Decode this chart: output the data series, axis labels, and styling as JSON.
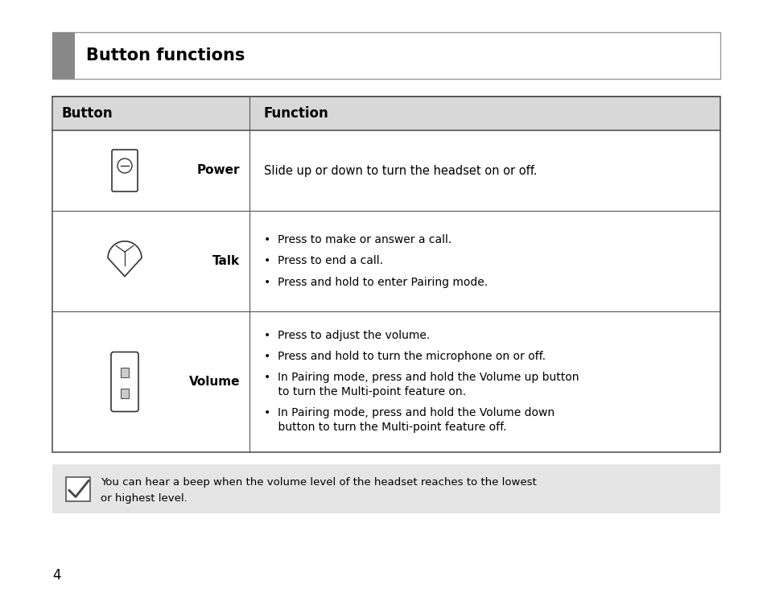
{
  "title": "Button functions",
  "title_color": "#000000",
  "title_accent_color": "#888888",
  "header_bg": "#d8d8d8",
  "page_bg": "#ffffff",
  "col1_header": "Button",
  "col2_header": "Function",
  "rows": [
    {
      "name": "Power",
      "function_lines": [
        "Slide up or down to turn the headset on or off."
      ],
      "bulleted": false
    },
    {
      "name": "Talk",
      "function_lines": [
        "Press to make or answer a call.",
        "Press to end a call.",
        "Press and hold to enter Pairing mode."
      ],
      "bulleted": true
    },
    {
      "name": "Volume",
      "function_lines": [
        "Press to adjust the volume.",
        "Press and hold to turn the microphone on or off.",
        "In Pairing mode, press and hold the Volume up button\nto turn the Multi-point feature on.",
        "In Pairing mode, press and hold the Volume down\nbutton to turn the Multi-point feature off."
      ],
      "bulleted": true
    }
  ],
  "note_line1": "You can hear a beep when the volume level of the headset reaches to the lowest",
  "note_line2": "or highest level.",
  "page_number": "4",
  "note_bg": "#e5e5e5",
  "border_color": "#555555",
  "text_color": "#000000",
  "bullet": "•"
}
